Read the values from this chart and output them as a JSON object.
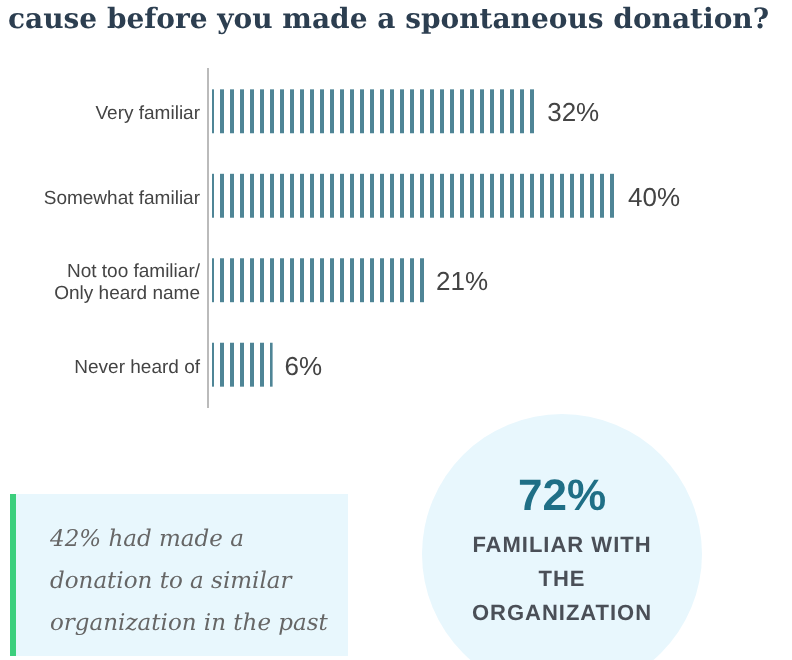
{
  "chart_data": {
    "type": "bar",
    "orientation": "horizontal",
    "title": "cause before you made a spontaneous donation?",
    "categories": [
      "Very familiar",
      "Somewhat familiar",
      "Not too familiar/ Only heard name",
      "Never heard of"
    ],
    "values": [
      32,
      40,
      21,
      6
    ],
    "value_labels": [
      "32%",
      "40%",
      "21%",
      "6%"
    ],
    "color": "#4f8596",
    "annotations": [
      "42% had made a donation to a similar organization in the past",
      "72%",
      "FAMILIAR WITH THE ORGANIZATION"
    ]
  }
}
